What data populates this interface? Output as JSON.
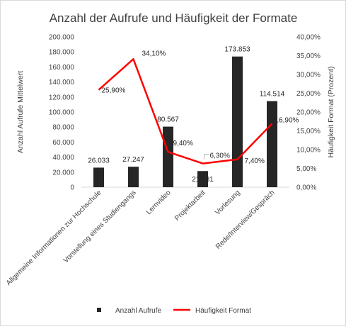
{
  "chart_data": {
    "type": "bar+line",
    "title": "Anzahl der Aufrufe und Häufigkeit der Formate",
    "categories": [
      "Allgemeine Informationen zur Hochschule",
      "Vorstellung eines Studiengangs",
      "Lernvideo",
      "Projektarbeit",
      "Vorlesung",
      "Rede/Interview/Gespräch"
    ],
    "series": [
      {
        "name": "Anzahl Aufrufe",
        "type": "bar",
        "axis": "left",
        "color": "#262626",
        "values": [
          26033,
          27247,
          80567,
          21481,
          173853,
          114514
        ],
        "labels": [
          "26.033",
          "27.247",
          "80.567",
          "21.481",
          "173.853",
          "114.514"
        ]
      },
      {
        "name": "Häufigkeit Format",
        "type": "line",
        "axis": "right",
        "color": "#ff0000",
        "values": [
          25.9,
          34.1,
          9.4,
          6.3,
          7.4,
          16.9
        ],
        "labels": [
          "25,90%",
          "34,10%",
          "9,40%",
          "6,30%",
          "7,40%",
          "16,90%"
        ]
      }
    ],
    "ylabel": "Anzahl Aufrufe Mittelwert",
    "y2label": "Häufigkeit Format (Prozent)",
    "ylim": [
      0,
      200000
    ],
    "y2lim": [
      0,
      40
    ],
    "yticks": [
      "0",
      "20.000",
      "40.000",
      "60.000",
      "80.000",
      "100.000",
      "120.000",
      "140.000",
      "160.000",
      "180.000",
      "200.000"
    ],
    "y2ticks": [
      "0,00%",
      "5,00%",
      "10,00%",
      "15,00%",
      "20,00%",
      "25,00%",
      "30,00%",
      "35,00%",
      "40,00%"
    ],
    "grid": false,
    "legend_position": "bottom"
  }
}
